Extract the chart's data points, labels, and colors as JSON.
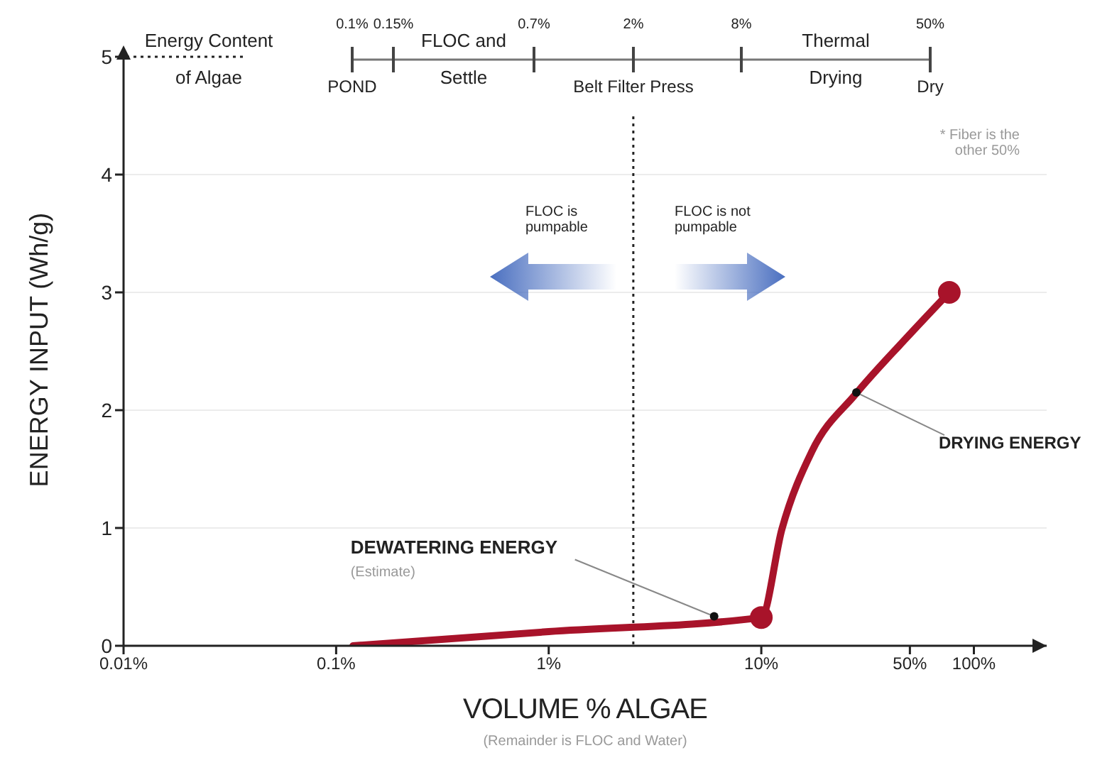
{
  "chart_data": {
    "type": "line",
    "xlabel": "VOLUME % ALGAE",
    "ylabel": "ENERGY INPUT (Wh/g)",
    "log": "x",
    "xlim": [
      0.01,
      220
    ],
    "ylim": [
      0,
      5
    ],
    "xticks": [
      {
        "value": 0.01,
        "label": "0.01%"
      },
      {
        "value": 0.1,
        "label": "0.1%"
      },
      {
        "value": 1,
        "label": "1%"
      },
      {
        "value": 10,
        "label": "10%"
      },
      {
        "value": 50,
        "label": "50%"
      },
      {
        "value": 100,
        "label": "100%"
      }
    ],
    "yticks": [
      0,
      1,
      2,
      3,
      4,
      5
    ],
    "grid": "y",
    "series": [
      {
        "color": "#a8132a",
        "x": [
          0.12,
          1,
          10,
          12.5,
          17.3,
          27.9,
          47.4,
          76.6
        ],
        "values": [
          0,
          0.12,
          0.24,
          0.99,
          1.65,
          2.14,
          2.6,
          3.0
        ]
      },
      {
        "type": "scatter",
        "color": "#a8132a",
        "x": [
          10,
          76.6
        ],
        "values": [
          0.24,
          3.0
        ]
      }
    ],
    "ref_lines": [
      {
        "axis": "x",
        "value": 2.5,
        "line_style": "dotted",
        "color": "#222222"
      },
      {
        "axis": "y",
        "value": 5,
        "label": "Energy Content of Algae",
        "line_style": "dotted",
        "color": "#222222"
      }
    ],
    "annotations": [
      "0.1%",
      "0.15%",
      "0.7%",
      "2%",
      "8%",
      "50%",
      "POND",
      "FLOC and Settle",
      "Belt Filter Press",
      "Thermal Drying",
      "Dry",
      "* Fiber is the other 50%",
      "FLOC is pumpable",
      "FLOC is not pumpable",
      {
        "text": "DEWATERING ENERGY",
        "x": 6,
        "y": 0.25
      },
      "(Estimate)",
      {
        "text": "DRYING ENERGY",
        "x": 28,
        "y": 2.15
      },
      "(Remainder is FLOC and Water)"
    ]
  }
}
